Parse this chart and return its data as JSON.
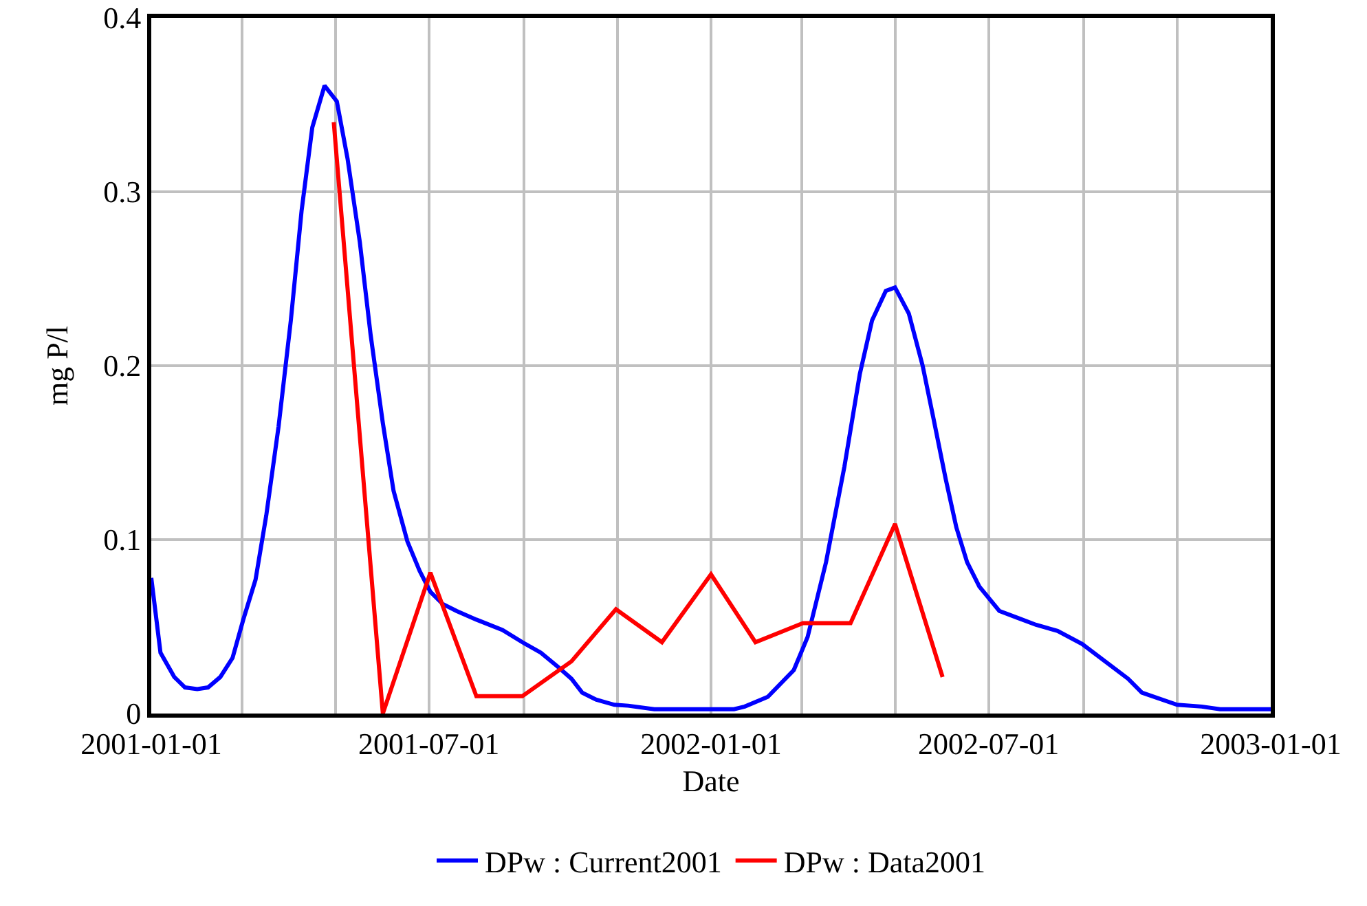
{
  "chart_data": {
    "type": "line",
    "xlabel": "Date",
    "ylabel": "mg P/l",
    "xlim": [
      "2001-01-01",
      "2003-01-01"
    ],
    "xticks": [
      {
        "value": "2001-01-01",
        "label": "2001-01-01"
      },
      {
        "value": "2001-03-01",
        "label": null
      },
      {
        "value": "2001-05-01",
        "label": null
      },
      {
        "value": "2001-07-01",
        "label": "2001-07-01"
      },
      {
        "value": "2001-09-01",
        "label": null
      },
      {
        "value": "2001-11-01",
        "label": null
      },
      {
        "value": "2002-01-01",
        "label": "2002-01-01"
      },
      {
        "value": "2002-03-01",
        "label": null
      },
      {
        "value": "2002-05-01",
        "label": null
      },
      {
        "value": "2002-07-01",
        "label": "2002-07-01"
      },
      {
        "value": "2002-09-01",
        "label": null
      },
      {
        "value": "2002-11-01",
        "label": null
      },
      {
        "value": "2003-01-01",
        "label": "2003-01-01"
      }
    ],
    "ylim": [
      0,
      0.4
    ],
    "yticks": [
      0,
      0.1,
      0.2,
      0.3,
      0.4
    ],
    "grid": true,
    "legend": "bottom",
    "marker": "none",
    "line_style": "solid",
    "series": [
      {
        "name": "DPw : Current2001",
        "color": "#0000ff",
        "x": [
          "2001-01-01",
          "2001-01-07",
          "2001-01-16",
          "2001-01-23",
          "2001-01-31",
          "2001-02-07",
          "2001-02-15",
          "2001-02-23",
          "2001-03-02",
          "2001-03-10",
          "2001-03-17",
          "2001-03-25",
          "2001-04-02",
          "2001-04-09",
          "2001-04-16",
          "2001-04-24",
          "2001-05-02",
          "2001-05-09",
          "2001-05-17",
          "2001-05-24",
          "2001-06-01",
          "2001-06-08",
          "2001-06-17",
          "2001-06-25",
          "2001-07-02",
          "2001-07-10",
          "2001-07-19",
          "2001-08-01",
          "2001-08-18",
          "2001-08-31",
          "2001-09-12",
          "2001-09-23",
          "2001-10-02",
          "2001-10-09",
          "2001-10-18",
          "2001-10-30",
          "2001-11-08",
          "2001-11-25",
          "2002-01-16",
          "2002-01-23",
          "2002-02-07",
          "2002-02-24",
          "2002-03-05",
          "2002-03-17",
          "2002-03-29",
          "2002-04-08",
          "2002-04-16",
          "2002-04-25",
          "2002-05-01",
          "2002-05-10",
          "2002-05-19",
          "2002-05-26",
          "2002-06-03",
          "2002-06-10",
          "2002-06-17",
          "2002-06-25",
          "2002-07-08",
          "2002-07-20",
          "2002-08-01",
          "2002-08-15",
          "2002-08-31",
          "2002-09-15",
          "2002-09-30",
          "2002-10-09",
          "2002-11-01",
          "2002-11-17",
          "2002-11-29",
          "2003-01-01"
        ],
        "values": [
          0.078,
          0.035,
          0.021,
          0.015,
          0.014,
          0.015,
          0.021,
          0.032,
          0.054,
          0.077,
          0.114,
          0.165,
          0.226,
          0.289,
          0.337,
          0.361,
          0.352,
          0.319,
          0.271,
          0.218,
          0.167,
          0.128,
          0.099,
          0.082,
          0.07,
          0.063,
          0.059,
          0.054,
          0.048,
          0.041,
          0.035,
          0.027,
          0.02,
          0.012,
          0.008,
          0.005,
          0.0045,
          0.0025,
          0.0025,
          0.004,
          0.0096,
          0.025,
          0.044,
          0.087,
          0.142,
          0.195,
          0.226,
          0.243,
          0.245,
          0.23,
          0.2,
          0.17,
          0.135,
          0.107,
          0.087,
          0.073,
          0.059,
          0.055,
          0.051,
          0.0475,
          0.04,
          0.03,
          0.02,
          0.012,
          0.005,
          0.004,
          0.0025,
          0.0025
        ]
      },
      {
        "name": "DPw : Data2001",
        "color": "#ff0000",
        "x": [
          "2001-04-30",
          "2001-06-01",
          "2001-07-02",
          "2001-08-01",
          "2001-08-31",
          "2001-10-02",
          "2001-10-31",
          "2001-11-30",
          "2002-01-01",
          "2002-01-30",
          "2002-03-02",
          "2002-04-02",
          "2002-05-01",
          "2002-06-01"
        ],
        "values": [
          0.34,
          0.0,
          0.081,
          0.01,
          0.01,
          0.03,
          0.06,
          0.041,
          0.08,
          0.041,
          0.052,
          0.052,
          0.109,
          0.021
        ]
      }
    ]
  }
}
